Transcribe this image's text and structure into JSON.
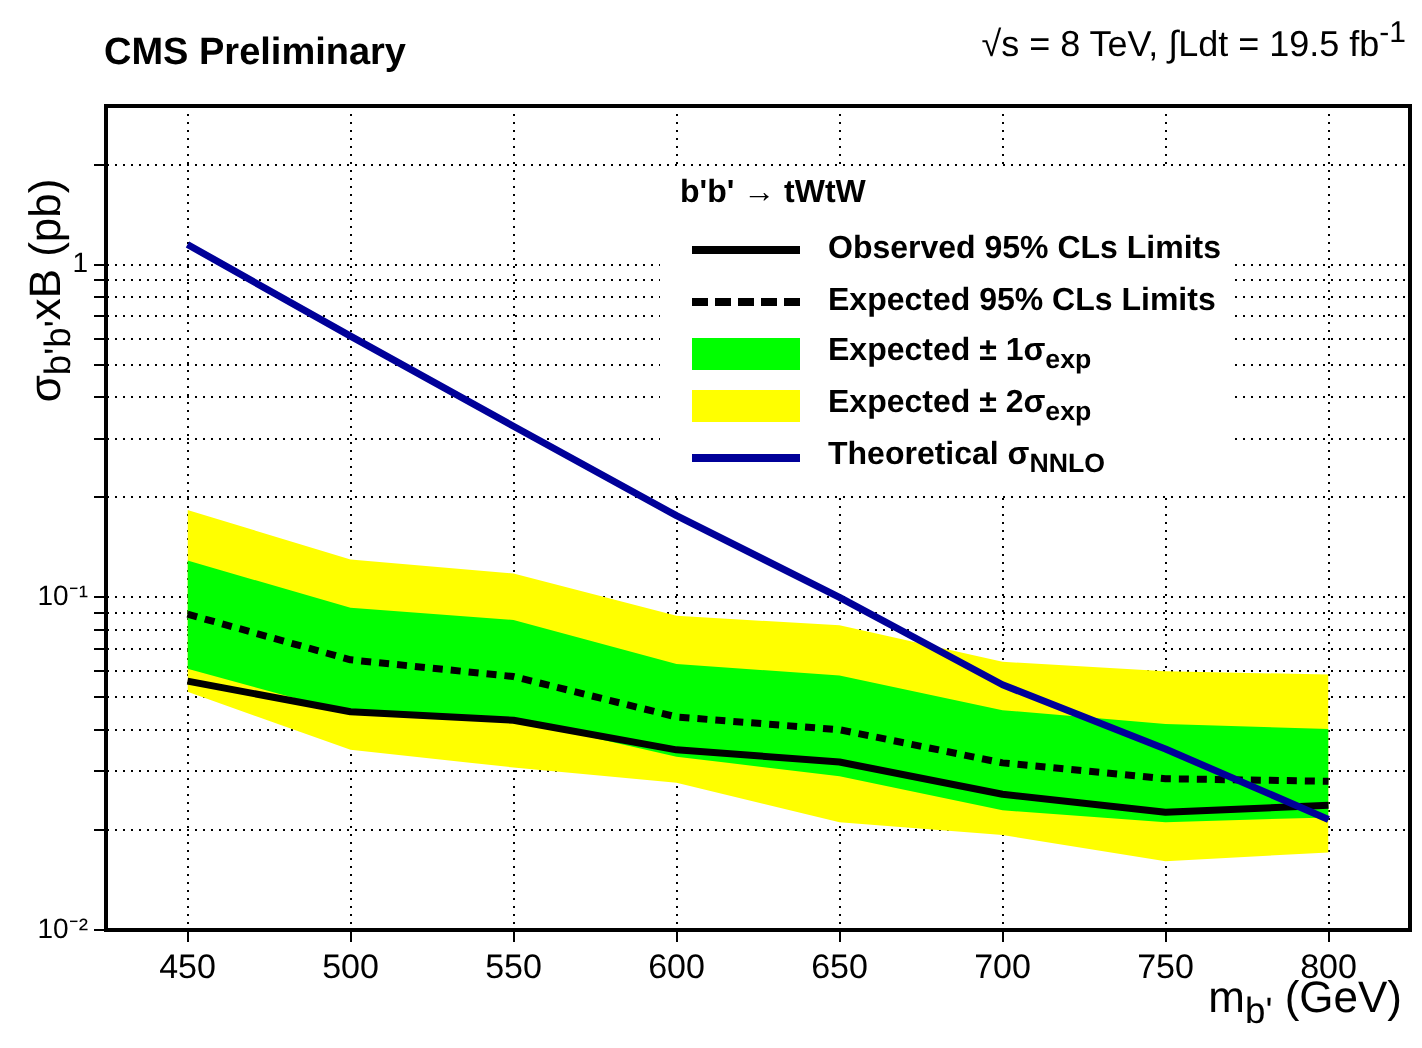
{
  "chart_data": {
    "type": "line",
    "title": "CMS Preliminary",
    "subtitle": "√s = 8 TeV, ∫Ldt = 19.5 fb$^{-1}$",
    "xlabel": "m$_{b'}$ (GeV)",
    "ylabel": "σ$_{b'b'}$xB (pb)",
    "legend_title": "b'b' → tWtW",
    "x": [
      450,
      500,
      550,
      600,
      650,
      700,
      750,
      800
    ],
    "series": [
      {
        "name": "Expected ± 2σ$_{exp}$",
        "type": "area",
        "color": "#ffff00",
        "values": [
          null,
          null,
          null,
          null,
          null,
          null,
          null,
          null
        ],
        "lower": [
          0.052,
          0.0348,
          0.0308,
          0.0277,
          0.0211,
          0.0193,
          0.0161,
          0.0171
        ],
        "upper": [
          0.183,
          0.13,
          0.118,
          0.088,
          0.0824,
          0.064,
          0.06,
          0.0586
        ]
      },
      {
        "name": "Expected ± 1σ$_{exp}$",
        "type": "area",
        "color": "#00ff00",
        "values": [
          null,
          null,
          null,
          null,
          null,
          null,
          null,
          null
        ],
        "lower": [
          0.061,
          0.0448,
          0.0429,
          0.0332,
          0.029,
          0.0229,
          0.0211,
          0.0218
        ],
        "upper": [
          0.129,
          0.093,
          0.0855,
          0.063,
          0.0582,
          0.0458,
          0.0416,
          0.0402
        ]
      },
      {
        "name": "Observed 95% CLs Limits",
        "color": "#000000",
        "line_style": "solid",
        "values": [
          0.056,
          0.0453,
          0.0427,
          0.0348,
          0.032,
          0.0256,
          0.0226,
          0.0237
        ]
      },
      {
        "name": "Expected 95% CLs Limits",
        "color": "#000000",
        "line_style": "dashed",
        "values": [
          0.089,
          0.0649,
          0.0578,
          0.0437,
          0.04,
          0.0318,
          0.0285,
          0.028
        ]
      },
      {
        "name": "Theoretical σ$_{NNLO}$",
        "color": "#000099",
        "line_style": "solid",
        "values": [
          1.15,
          0.61,
          0.327,
          0.176,
          0.1,
          0.0546,
          0.035,
          0.0215
        ]
      }
    ],
    "xlim": [
      425,
      825
    ],
    "xticks": [
      450,
      500,
      550,
      600,
      650,
      700,
      750,
      800
    ],
    "ylim": [
      0.01,
      3
    ],
    "yticks": [
      {
        "value": 0.01,
        "label": "10⁻²"
      },
      {
        "value": 0.02,
        "label": null
      },
      {
        "value": 0.03,
        "label": null
      },
      {
        "value": 0.04,
        "label": null
      },
      {
        "value": 0.05,
        "label": null
      },
      {
        "value": 0.06,
        "label": null
      },
      {
        "value": 0.07,
        "label": null
      },
      {
        "value": 0.08,
        "label": null
      },
      {
        "value": 0.09,
        "label": null
      },
      {
        "value": 0.1,
        "label": "10⁻¹"
      },
      {
        "value": 0.2,
        "label": null
      },
      {
        "value": 0.3,
        "label": null
      },
      {
        "value": 0.4,
        "label": null
      },
      {
        "value": 0.5,
        "label": null
      },
      {
        "value": 0.6,
        "label": null
      },
      {
        "value": 0.7,
        "label": null
      },
      {
        "value": 0.8,
        "label": null
      },
      {
        "value": 0.9,
        "label": null
      },
      {
        "value": 1,
        "label": "1"
      },
      {
        "value": 2,
        "label": null
      }
    ],
    "log": "y",
    "grid": true,
    "legend": "top right",
    "marker": "none"
  }
}
